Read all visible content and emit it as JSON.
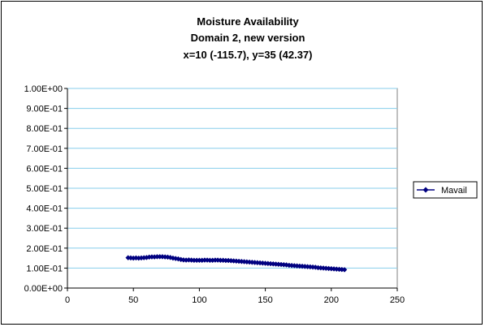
{
  "chart_data": {
    "type": "line",
    "title_lines": [
      "Moisture Availability",
      "Domain 2, new version",
      "x=10 (-115.7), y=35 (42.37)"
    ],
    "xlabel": "",
    "ylabel": "",
    "xlim": [
      0,
      250
    ],
    "ylim": [
      0,
      1
    ],
    "x_ticks": [
      0,
      50,
      100,
      150,
      200,
      250
    ],
    "x_tick_labels": [
      "0",
      "50",
      "100",
      "150",
      "200",
      "250"
    ],
    "y_ticks": [
      0,
      0.1,
      0.2,
      0.3,
      0.4,
      0.5,
      0.6,
      0.7,
      0.8,
      0.9,
      1.0
    ],
    "y_tick_labels": [
      "0.00E+00",
      "1.00E-01",
      "2.00E-01",
      "3.00E-01",
      "4.00E-01",
      "5.00E-01",
      "6.00E-01",
      "7.00E-01",
      "8.00E-01",
      "9.00E-01",
      "1.00E+00"
    ],
    "grid": "horizontal",
    "legend_position": "right",
    "series": [
      {
        "name": "Mavail",
        "color": "#000080",
        "marker": "diamond",
        "x": [
          46,
          48,
          50,
          52,
          54,
          56,
          58,
          60,
          62,
          64,
          66,
          68,
          70,
          72,
          74,
          76,
          78,
          80,
          82,
          84,
          86,
          88,
          90,
          92,
          94,
          96,
          98,
          100,
          102,
          104,
          106,
          108,
          110,
          112,
          114,
          116,
          118,
          120,
          122,
          124,
          126,
          128,
          130,
          132,
          134,
          136,
          138,
          140,
          142,
          144,
          146,
          148,
          150,
          152,
          154,
          156,
          158,
          160,
          162,
          164,
          166,
          168,
          170,
          172,
          174,
          176,
          178,
          180,
          182,
          184,
          186,
          188,
          190,
          192,
          194,
          196,
          198,
          200,
          202,
          204,
          206,
          208,
          210
        ],
        "values": [
          0.152,
          0.151,
          0.15,
          0.151,
          0.15,
          0.151,
          0.152,
          0.153,
          0.155,
          0.156,
          0.156,
          0.157,
          0.157,
          0.157,
          0.156,
          0.155,
          0.153,
          0.15,
          0.148,
          0.146,
          0.143,
          0.141,
          0.14,
          0.141,
          0.14,
          0.139,
          0.139,
          0.139,
          0.139,
          0.14,
          0.14,
          0.139,
          0.139,
          0.14,
          0.14,
          0.139,
          0.139,
          0.138,
          0.138,
          0.137,
          0.136,
          0.135,
          0.134,
          0.133,
          0.132,
          0.131,
          0.13,
          0.129,
          0.128,
          0.127,
          0.126,
          0.125,
          0.124,
          0.123,
          0.122,
          0.121,
          0.12,
          0.119,
          0.118,
          0.117,
          0.116,
          0.114,
          0.113,
          0.112,
          0.111,
          0.11,
          0.109,
          0.108,
          0.107,
          0.106,
          0.105,
          0.104,
          0.102,
          0.101,
          0.1,
          0.099,
          0.098,
          0.097,
          0.096,
          0.095,
          0.094,
          0.093,
          0.092
        ]
      }
    ]
  }
}
